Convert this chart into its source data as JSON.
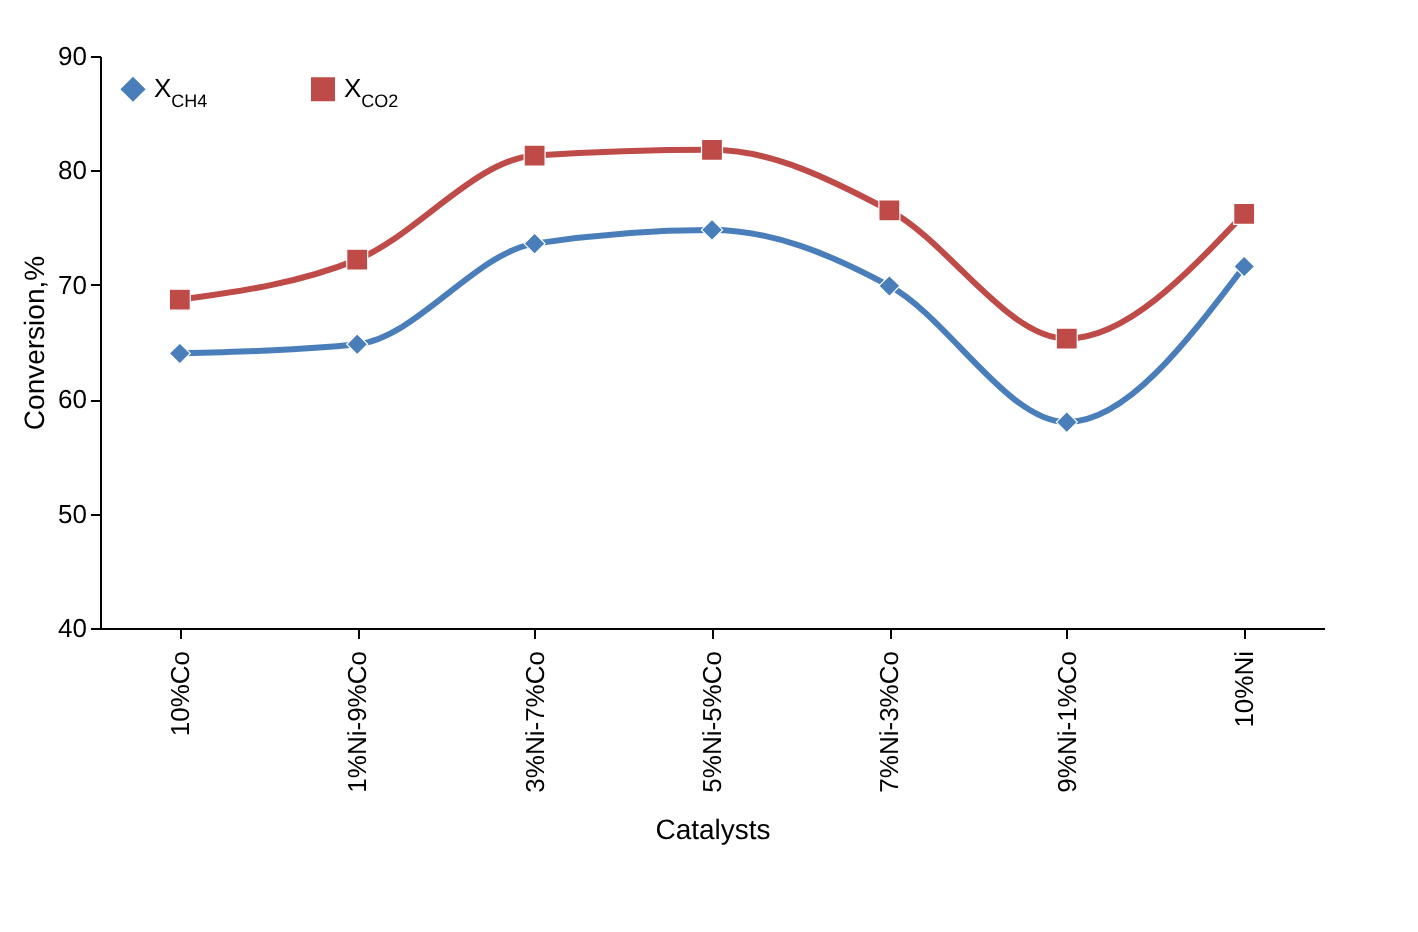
{
  "chart_data": {
    "type": "line",
    "xlabel": "Catalysts",
    "ylabel": "Conversion,%",
    "categories": [
      "10%Co",
      "1%Ni-9%Co",
      "3%Ni-7%Co",
      "5%Ni-5%Co",
      "7%Ni-3%Co",
      "9%Ni-1%Co",
      "10%Ni"
    ],
    "series": [
      {
        "name": "X$_{CH4}$",
        "color": "#4a7ebb",
        "marker": "diamond",
        "values": [
          64.0,
          64.8,
          73.6,
          74.8,
          69.9,
          58.0,
          71.6
        ]
      },
      {
        "name": "X$_{CO2}$",
        "color": "#be4b48",
        "marker": "square",
        "values": [
          68.7,
          72.2,
          81.3,
          81.8,
          76.5,
          65.3,
          76.2
        ]
      }
    ],
    "ylim": [
      40,
      90
    ],
    "yticks": [
      40,
      50,
      60,
      70,
      80,
      90
    ],
    "grid": false,
    "legend": "top left"
  }
}
